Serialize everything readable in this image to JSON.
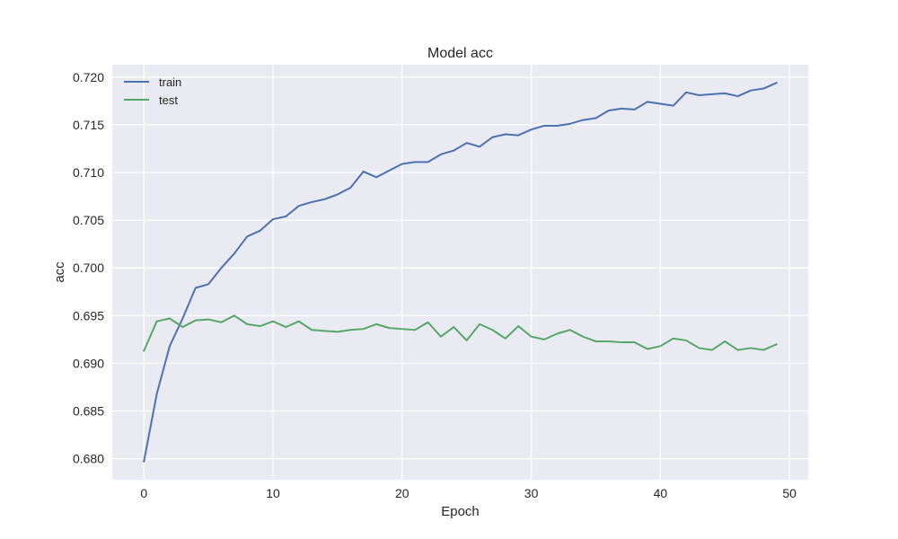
{
  "chart_data": {
    "type": "line",
    "title": "Model acc",
    "xlabel": "Epoch",
    "ylabel": "acc",
    "xlim": [
      -2.45,
      51.45
    ],
    "ylim": [
      0.6778,
      0.7213
    ],
    "xticks": [
      0,
      10,
      20,
      30,
      40,
      50
    ],
    "yticks": [
      0.68,
      0.685,
      0.69,
      0.695,
      0.7,
      0.705,
      0.71,
      0.715,
      0.72
    ],
    "grid": true,
    "legend": "top-left",
    "x": [
      0,
      1,
      2,
      3,
      4,
      5,
      6,
      7,
      8,
      9,
      10,
      11,
      12,
      13,
      14,
      15,
      16,
      17,
      18,
      19,
      20,
      21,
      22,
      23,
      24,
      25,
      26,
      27,
      28,
      29,
      30,
      31,
      32,
      33,
      34,
      35,
      36,
      37,
      38,
      39,
      40,
      41,
      42,
      43,
      44,
      45,
      46,
      47,
      48,
      49
    ],
    "series": [
      {
        "name": "train",
        "color": "#4c72b0",
        "values": [
          0.6797,
          0.6868,
          0.6918,
          0.6947,
          0.6979,
          0.6983,
          0.7,
          0.7015,
          0.7033,
          0.7039,
          0.7051,
          0.7054,
          0.7065,
          0.7069,
          0.7072,
          0.7077,
          0.7084,
          0.7101,
          0.7095,
          0.7102,
          0.7109,
          0.7111,
          0.7111,
          0.7119,
          0.7123,
          0.7131,
          0.7127,
          0.7137,
          0.714,
          0.7139,
          0.7145,
          0.7149,
          0.7149,
          0.7151,
          0.7155,
          0.7157,
          0.7165,
          0.7167,
          0.7166,
          0.7174,
          0.7172,
          0.717,
          0.7184,
          0.7181,
          0.7182,
          0.7183,
          0.718,
          0.7186,
          0.7188,
          0.7194
        ]
      },
      {
        "name": "test",
        "color": "#55a868",
        "values": [
          0.6913,
          0.6944,
          0.6947,
          0.6938,
          0.6945,
          0.6946,
          0.6943,
          0.695,
          0.6941,
          0.6939,
          0.6944,
          0.6938,
          0.6944,
          0.6935,
          0.6934,
          0.6933,
          0.6935,
          0.6936,
          0.6941,
          0.6937,
          0.6936,
          0.6935,
          0.6943,
          0.6928,
          0.6938,
          0.6924,
          0.6941,
          0.6935,
          0.6926,
          0.6939,
          0.6928,
          0.6925,
          0.6931,
          0.6935,
          0.6928,
          0.6923,
          0.6923,
          0.6922,
          0.6922,
          0.6915,
          0.6918,
          0.6926,
          0.6924,
          0.6916,
          0.6914,
          0.6923,
          0.6914,
          0.6916,
          0.6914,
          0.692
        ]
      }
    ]
  }
}
